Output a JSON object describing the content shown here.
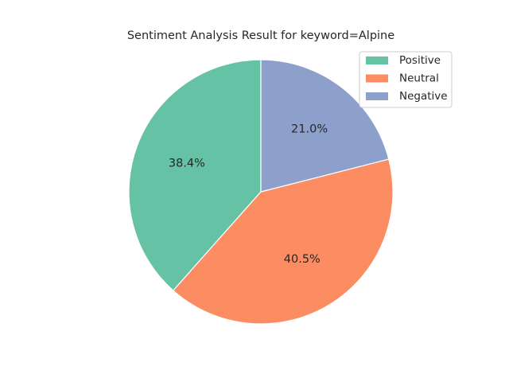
{
  "chart_data": {
    "type": "pie",
    "title": "Sentiment Analysis Result for keyword=Alpine",
    "categories": [
      "Positive",
      "Neutral",
      "Negative"
    ],
    "values": [
      38.4,
      40.5,
      21.0
    ],
    "labels": [
      "38.4%",
      "40.5%",
      "21.0%"
    ],
    "colors": [
      "#66c2a5",
      "#fc8d62",
      "#8da0cb"
    ],
    "start_angle_deg": 90,
    "direction": "counterclockwise",
    "legend_position": "upper right"
  }
}
